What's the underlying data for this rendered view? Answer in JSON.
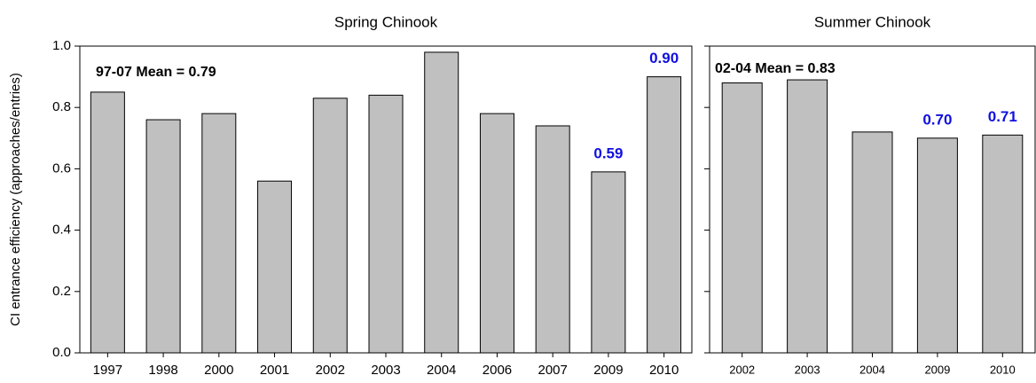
{
  "chart_data": [
    {
      "type": "bar",
      "title": "Spring Chinook",
      "y_label": "CI entrance efficiency (approaches/entries)",
      "annotation": "97-07 Mean = 0.79",
      "categories": [
        "1997",
        "1998",
        "2000",
        "2001",
        "2002",
        "2003",
        "2004",
        "2006",
        "2007",
        "2009",
        "2010"
      ],
      "values": [
        0.85,
        0.76,
        0.78,
        0.56,
        0.83,
        0.84,
        0.98,
        0.78,
        0.74,
        0.59,
        0.9
      ],
      "value_labels": [
        null,
        null,
        null,
        null,
        null,
        null,
        null,
        null,
        null,
        "0.59",
        "0.90"
      ],
      "color": "#c0c0c0",
      "label_color": "#1010e0",
      "ylim": [
        0,
        1
      ],
      "yticks": [
        {
          "value": 0,
          "label": "0.0"
        },
        0.2,
        0.4,
        0.6,
        0.8,
        {
          "value": 1,
          "label": "1.0"
        }
      ]
    },
    {
      "type": "bar",
      "title": "Summer Chinook",
      "annotation": "02-04 Mean = 0.83",
      "categories": [
        "2002",
        "2003",
        "2004",
        "2009",
        "2010"
      ],
      "values": [
        0.88,
        0.89,
        0.72,
        0.7,
        0.71
      ],
      "value_labels": [
        null,
        null,
        null,
        "0.70",
        "0.71"
      ],
      "color": "#c0c0c0",
      "label_color": "#1010e0",
      "ylim": [
        0,
        1
      ],
      "yticks": [
        0,
        0.2,
        0.4,
        0.6,
        0.8,
        1
      ]
    }
  ]
}
